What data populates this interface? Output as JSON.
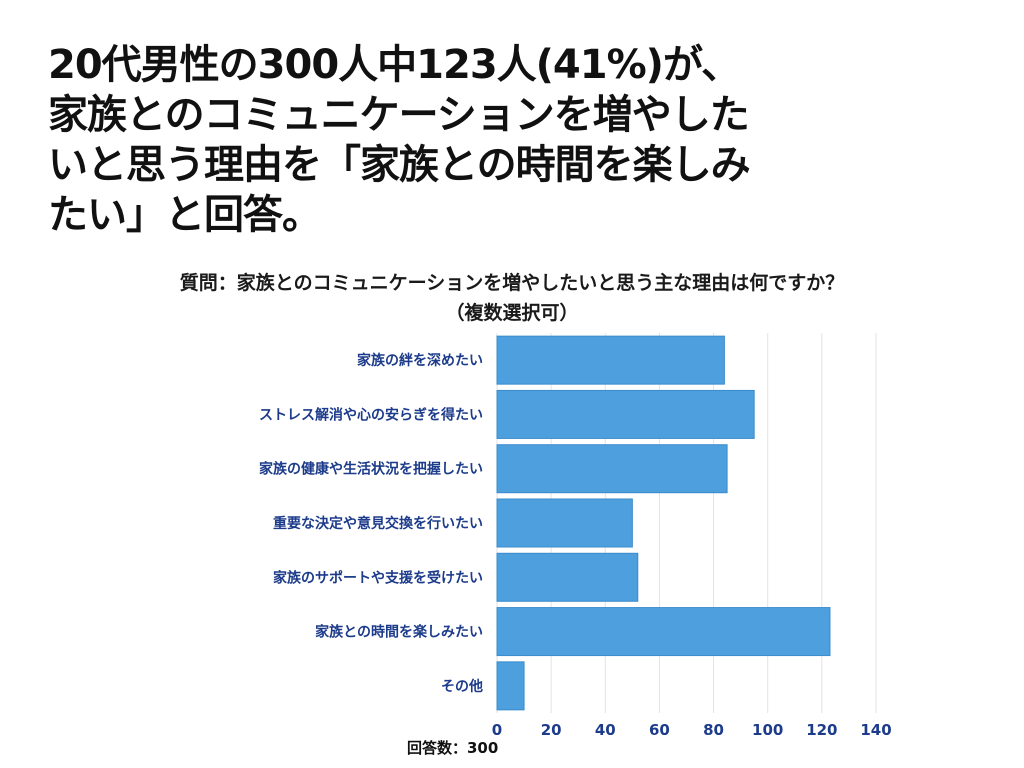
{
  "headline": "20代男性の300人中123人(41%)が、\n家族とのコミュニケーションを増やした\nいと思う理由を「家族との時間を楽しみ\nたい」と回答。",
  "question_line1": "質問：家族とのコミュニケーションを増やしたいと思う主な理由は何ですか？",
  "question_line2": "（複数選択可）",
  "respondents": "回答数：300",
  "colors": {
    "bar": "#4d9fde",
    "bar_stroke": "#3a8ccc",
    "grid": "#e3e3e3",
    "label": "#1c3b8a"
  },
  "chart_data": {
    "type": "bar",
    "orientation": "horizontal",
    "categories": [
      "家族の絆を深めたい",
      "ストレス解消や心の安らぎを得たい",
      "家族の健康や生活状況を把握したい",
      "重要な決定や意見交換を行いたい",
      "家族のサポートや支援を受けたい",
      "家族との時間を楽しみたい",
      "その他"
    ],
    "values": [
      84,
      95,
      85,
      50,
      52,
      123,
      10
    ],
    "xlim": [
      0,
      140
    ],
    "xticks": [
      0,
      20,
      40,
      60,
      80,
      100,
      120,
      140
    ],
    "grid": true
  }
}
